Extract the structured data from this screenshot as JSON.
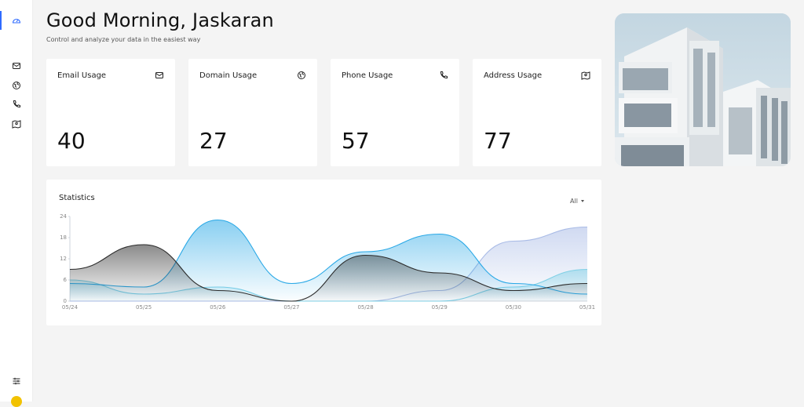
{
  "header": {
    "greeting": "Good Morning, Jaskaran",
    "subtitle": "Control and analyze your data in the easiest way"
  },
  "sidebar": {
    "items": [
      {
        "icon": "dashboard-icon",
        "active": true
      },
      {
        "icon": "mail-icon",
        "active": false
      },
      {
        "icon": "globe-icon",
        "active": false
      },
      {
        "icon": "phone-icon",
        "active": false
      },
      {
        "icon": "map-icon",
        "active": false
      }
    ],
    "bottom_icon": "settings-sliders-icon",
    "accent": "#2f6bff"
  },
  "cards": [
    {
      "label": "Email Usage",
      "value": "40",
      "icon": "mail-icon"
    },
    {
      "label": "Domain Usage",
      "value": "27",
      "icon": "globe-icon"
    },
    {
      "label": "Phone Usage",
      "value": "57",
      "icon": "phone-icon"
    },
    {
      "label": "Address Usage",
      "value": "77",
      "icon": "map-icon"
    }
  ],
  "statistics": {
    "title": "Statistics",
    "filter": "All"
  },
  "chart_data": {
    "type": "area",
    "title": "Statistics",
    "xlabel": "",
    "ylabel": "",
    "x": [
      "05/24",
      "05/25",
      "05/26",
      "05/27",
      "05/28",
      "05/29",
      "05/30",
      "05/31"
    ],
    "yticks": [
      0,
      6,
      12,
      18,
      24
    ],
    "ylim": [
      0,
      24
    ],
    "grid": false,
    "series": [
      {
        "color": "#2b2b2b",
        "values": [
          9,
          16,
          3,
          0,
          13,
          8,
          3,
          5
        ]
      },
      {
        "color": "#29a8e6",
        "values": [
          5,
          4,
          23,
          5,
          14,
          19,
          5,
          2
        ]
      },
      {
        "color": "#a9bbe6",
        "values": [
          0,
          0,
          0,
          0,
          0,
          3,
          17,
          21
        ]
      },
      {
        "color": "#7fd0e6",
        "values": [
          6,
          2,
          4,
          0,
          0,
          0,
          4,
          9
        ]
      }
    ]
  }
}
